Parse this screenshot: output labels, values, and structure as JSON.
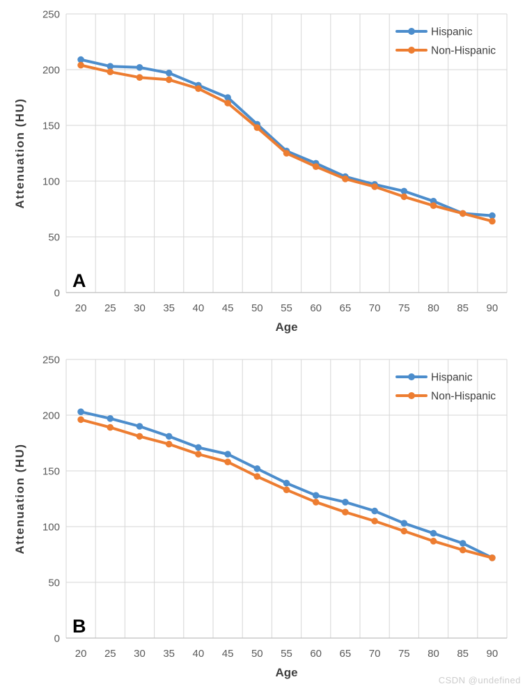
{
  "watermark": "CSDN @undefined",
  "colors": {
    "hispanic": "#4C8DCC",
    "non_hispanic": "#ED7D31",
    "gridline": "#D6D6D6",
    "axis_line": "#BFBFBF",
    "tick_text": "#595959",
    "axis_title_text": "#3F3F3F",
    "legend_text": "#3F3F3F",
    "panel_letter": "#000000",
    "watermark_text": "#CCCCCC"
  },
  "chart_data": [
    {
      "type": "line",
      "panel_label": "A",
      "title": "",
      "xlabel": "Age",
      "ylabel": "Attenuation (HU)",
      "ylim": [
        0,
        250
      ],
      "yticks": [
        0,
        50,
        100,
        150,
        200,
        250
      ],
      "grid": true,
      "legend_position": "top-right-inside",
      "categories": [
        20,
        25,
        30,
        35,
        40,
        45,
        50,
        55,
        60,
        65,
        70,
        75,
        80,
        85,
        90
      ],
      "series": [
        {
          "name": "Hispanic",
          "color_key": "hispanic",
          "values": [
            209,
            203,
            202,
            197,
            186,
            175,
            151,
            127,
            116,
            104,
            97,
            91,
            82,
            71,
            69
          ]
        },
        {
          "name": "Non-Hispanic",
          "color_key": "non_hispanic",
          "values": [
            204,
            198,
            193,
            191,
            183,
            170,
            148,
            125,
            113,
            102,
            95,
            86,
            78,
            71,
            64
          ]
        }
      ]
    },
    {
      "type": "line",
      "panel_label": "B",
      "title": "",
      "xlabel": "Age",
      "ylabel": "Attenuation (HU)",
      "ylim": [
        0,
        250
      ],
      "yticks": [
        0,
        50,
        100,
        150,
        200,
        250
      ],
      "grid": true,
      "legend_position": "top-right-inside",
      "categories": [
        20,
        25,
        30,
        35,
        40,
        45,
        50,
        55,
        60,
        65,
        70,
        75,
        80,
        85,
        90
      ],
      "series": [
        {
          "name": "Hispanic",
          "color_key": "hispanic",
          "values": [
            203,
            197,
            190,
            181,
            171,
            165,
            152,
            139,
            128,
            122,
            114,
            103,
            94,
            85,
            72
          ]
        },
        {
          "name": "Non-Hispanic",
          "color_key": "non_hispanic",
          "values": [
            196,
            189,
            181,
            174,
            165,
            158,
            145,
            133,
            122,
            113,
            105,
            96,
            87,
            79,
            72
          ]
        }
      ]
    }
  ]
}
